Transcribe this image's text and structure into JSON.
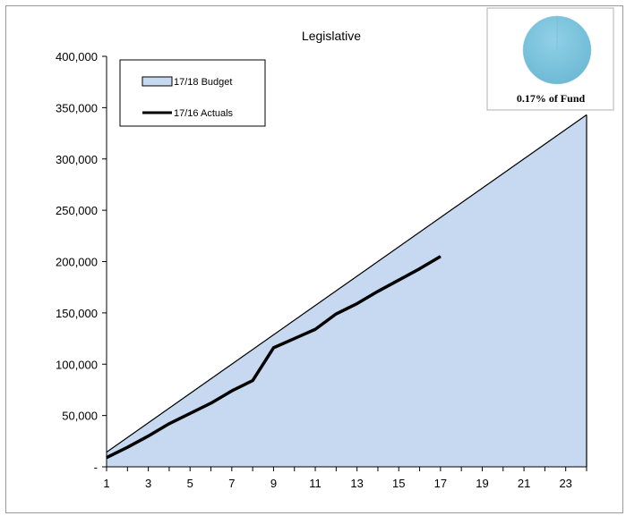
{
  "chart_data": {
    "type": "area",
    "title": "Legislative",
    "xlabel": "",
    "ylabel": "",
    "x_ticks": [
      "1",
      "3",
      "5",
      "7",
      "9",
      "11",
      "13",
      "15",
      "17",
      "19",
      "21",
      "23"
    ],
    "y_ticks": [
      "-",
      "50,000",
      "100,000",
      "150,000",
      "200,000",
      "250,000",
      "300,000",
      "350,000",
      "400,000"
    ],
    "xlim": [
      1,
      24
    ],
    "ylim": [
      0,
      400000
    ],
    "grid": false,
    "legend_position": "top-left",
    "series": [
      {
        "name": "17/18 Budget",
        "type": "area",
        "color": "#c6d9f1",
        "x": [
          1,
          24
        ],
        "values": [
          14300,
          343000
        ]
      },
      {
        "name": "17/16 Actuals",
        "type": "line",
        "color": "#000000",
        "x": [
          1,
          2,
          3,
          4,
          5,
          6,
          7,
          8,
          9,
          10,
          11,
          12,
          13,
          14,
          15,
          16,
          17
        ],
        "values": [
          9000,
          19000,
          30000,
          42000,
          52000,
          62000,
          74000,
          84000,
          116000,
          125000,
          134000,
          149000,
          159000,
          171000,
          182000,
          193000,
          205000
        ]
      }
    ]
  },
  "inset": {
    "label": "0.17% of Fund",
    "percent": 0.17,
    "pie_color": "#6cb8d4"
  }
}
